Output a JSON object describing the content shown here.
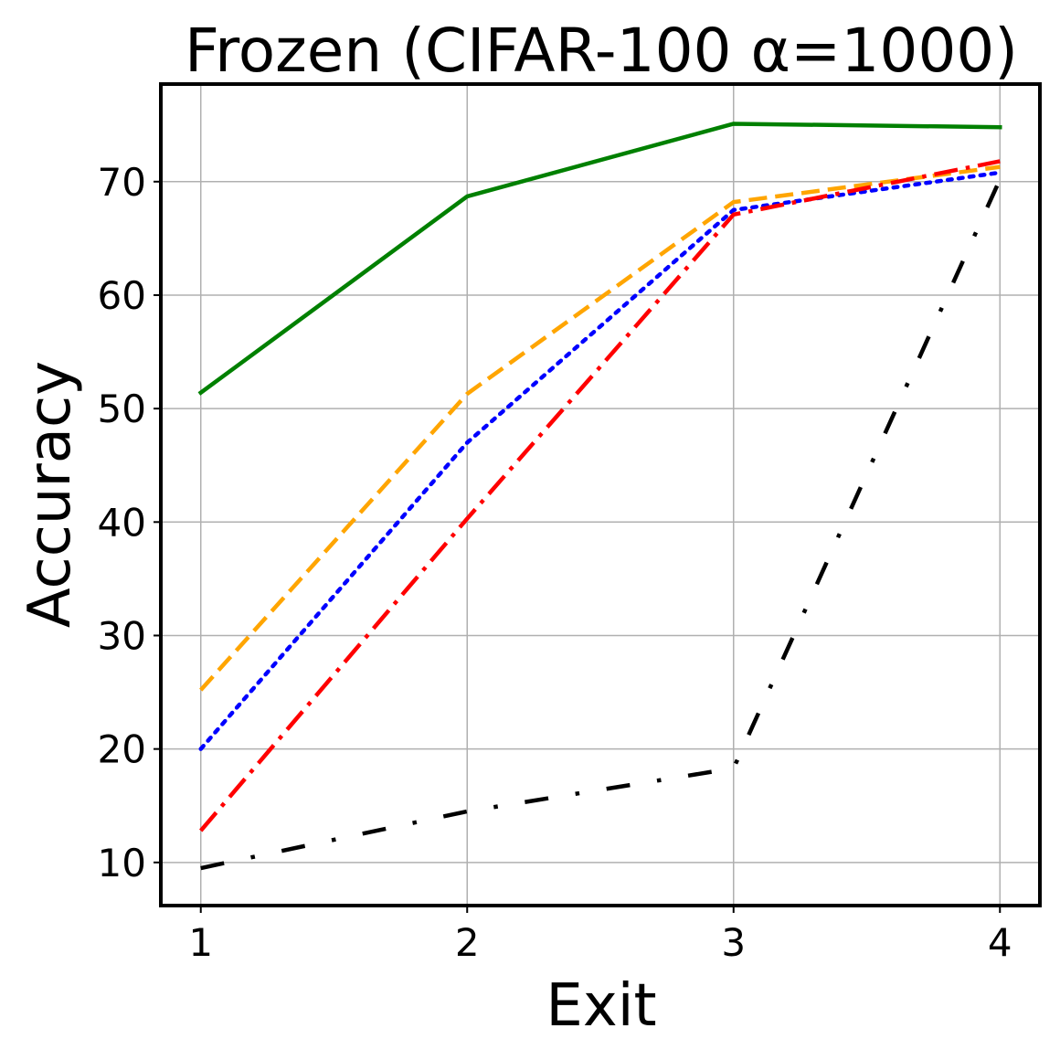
{
  "chart_data": {
    "type": "line",
    "title": "Frozen (CIFAR-100 α=1000)",
    "xlabel": "Exit",
    "ylabel": "Accuracy",
    "x": [
      1,
      2,
      3,
      4
    ],
    "x_ticks": [
      "1",
      "2",
      "3",
      "4"
    ],
    "y_ticks": [
      "10",
      "20",
      "30",
      "40",
      "50",
      "60",
      "70"
    ],
    "xlim": [
      0.85,
      4.15
    ],
    "ylim": [
      6.2,
      78.6
    ],
    "grid": true,
    "series": [
      {
        "color": "#008000",
        "dash": "solid",
        "values": [
          51.4,
          68.7,
          75.1,
          74.8
        ]
      },
      {
        "color": "#ffa500",
        "dash": "dashed",
        "values": [
          25.2,
          51.3,
          68.2,
          71.3
        ]
      },
      {
        "color": "#0000ff",
        "dash": "dotted",
        "values": [
          20.0,
          47.0,
          67.5,
          70.8
        ]
      },
      {
        "color": "#ff0000",
        "dash": "dashdot",
        "values": [
          12.8,
          40.3,
          67.1,
          71.8
        ]
      },
      {
        "color": "#000000",
        "dash": "loosely-dashdotted",
        "values": [
          9.5,
          14.5,
          18.3,
          70.2
        ]
      }
    ]
  }
}
